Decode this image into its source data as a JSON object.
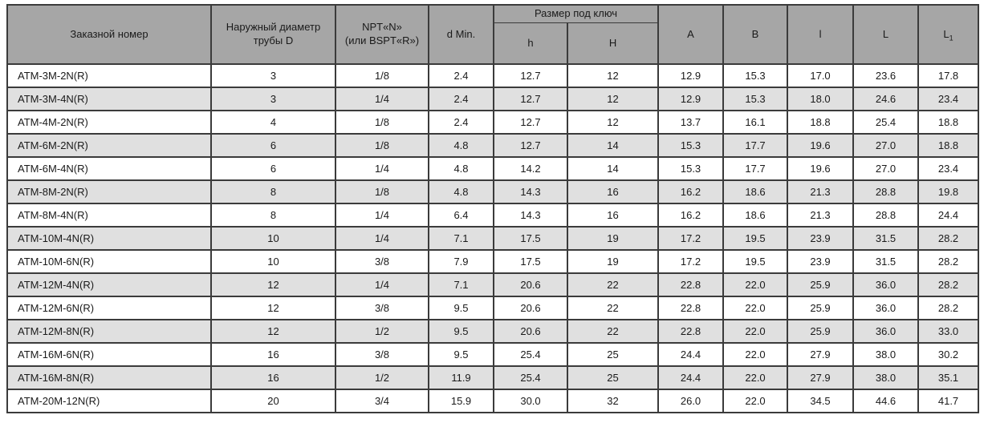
{
  "table": {
    "headers": {
      "order_number": "Заказной номер",
      "outer_diameter": "Наружный диаметр трубы D",
      "npt_line1": "NPT«N»",
      "npt_line2": "(или BSPT«R»)",
      "d_min": "d Min.",
      "wrench_size": "Размер под ключ",
      "h_small": "h",
      "h_big": "H",
      "a": "A",
      "b": "B",
      "l_small": "l",
      "l_big": "L",
      "l1_base": "L",
      "l1_sub": "1"
    },
    "rows": [
      [
        "ATM-3M-2N(R)",
        "3",
        "1/8",
        "2.4",
        "12.7",
        "12",
        "12.9",
        "15.3",
        "17.0",
        "23.6",
        "17.8"
      ],
      [
        "ATM-3M-4N(R)",
        "3",
        "1/4",
        "2.4",
        "12.7",
        "12",
        "12.9",
        "15.3",
        "18.0",
        "24.6",
        "23.4"
      ],
      [
        "ATM-4M-2N(R)",
        "4",
        "1/8",
        "2.4",
        "12.7",
        "12",
        "13.7",
        "16.1",
        "18.8",
        "25.4",
        "18.8"
      ],
      [
        "ATM-6M-2N(R)",
        "6",
        "1/8",
        "4.8",
        "12.7",
        "14",
        "15.3",
        "17.7",
        "19.6",
        "27.0",
        "18.8"
      ],
      [
        "ATM-6M-4N(R)",
        "6",
        "1/4",
        "4.8",
        "14.2",
        "14",
        "15.3",
        "17.7",
        "19.6",
        "27.0",
        "23.4"
      ],
      [
        "ATM-8M-2N(R)",
        "8",
        "1/8",
        "4.8",
        "14.3",
        "16",
        "16.2",
        "18.6",
        "21.3",
        "28.8",
        "19.8"
      ],
      [
        "ATM-8M-4N(R)",
        "8",
        "1/4",
        "6.4",
        "14.3",
        "16",
        "16.2",
        "18.6",
        "21.3",
        "28.8",
        "24.4"
      ],
      [
        "ATM-10M-4N(R)",
        "10",
        "1/4",
        "7.1",
        "17.5",
        "19",
        "17.2",
        "19.5",
        "23.9",
        "31.5",
        "28.2"
      ],
      [
        "ATM-10M-6N(R)",
        "10",
        "3/8",
        "7.9",
        "17.5",
        "19",
        "17.2",
        "19.5",
        "23.9",
        "31.5",
        "28.2"
      ],
      [
        "ATM-12M-4N(R)",
        "12",
        "1/4",
        "7.1",
        "20.6",
        "22",
        "22.8",
        "22.0",
        "25.9",
        "36.0",
        "28.2"
      ],
      [
        "ATM-12M-6N(R)",
        "12",
        "3/8",
        "9.5",
        "20.6",
        "22",
        "22.8",
        "22.0",
        "25.9",
        "36.0",
        "28.2"
      ],
      [
        "ATM-12M-8N(R)",
        "12",
        "1/2",
        "9.5",
        "20.6",
        "22",
        "22.8",
        "22.0",
        "25.9",
        "36.0",
        "33.0"
      ],
      [
        "ATM-16M-6N(R)",
        "16",
        "3/8",
        "9.5",
        "25.4",
        "25",
        "24.4",
        "22.0",
        "27.9",
        "38.0",
        "30.2"
      ],
      [
        "ATM-16M-8N(R)",
        "16",
        "1/2",
        "11.9",
        "25.4",
        "25",
        "24.4",
        "22.0",
        "27.9",
        "38.0",
        "35.1"
      ],
      [
        "ATM-20M-12N(R)",
        "20",
        "3/4",
        "15.9",
        "30.0",
        "32",
        "26.0",
        "22.0",
        "34.5",
        "44.6",
        "41.7"
      ]
    ]
  },
  "colors": {
    "header_bg": "#a6a6a6",
    "stripe_bg": "#e0e0e0",
    "row_bg": "#ffffff",
    "border": "#3b3b3b",
    "text": "#1a1a1a"
  }
}
